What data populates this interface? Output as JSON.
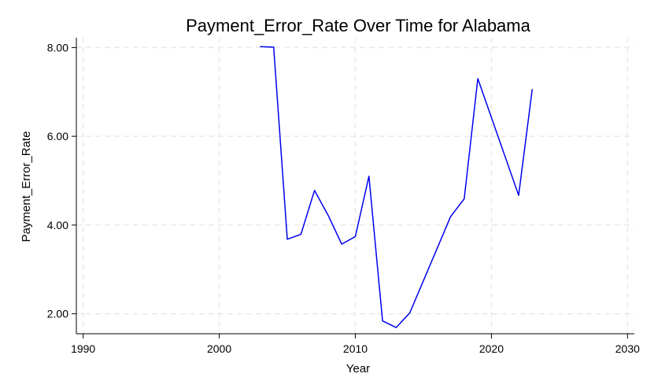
{
  "chart_data": {
    "type": "line",
    "title": "Payment_Error_Rate Over Time for Alabama",
    "xlabel": "Year",
    "ylabel": "Payment_Error_Rate",
    "xlim": [
      1989.5,
      2030.5
    ],
    "ylim": [
      1.55,
      8.22
    ],
    "x_ticks": [
      1990,
      2000,
      2010,
      2020,
      2030
    ],
    "x_tick_labels": [
      "1990",
      "2000",
      "2010",
      "2020",
      "2030"
    ],
    "y_ticks": [
      2,
      4,
      6,
      8
    ],
    "y_tick_labels": [
      "2.00",
      "4.00",
      "6.00",
      "8.00"
    ],
    "grid": true,
    "series": [
      {
        "color": "#0000ee",
        "x": [
          2003,
          2004,
          2005,
          2006,
          2007,
          2008,
          2009,
          2010,
          2011,
          2012,
          2013,
          2014,
          2017,
          2018,
          2019,
          2022,
          2023
        ],
        "y": [
          8.02,
          8.01,
          3.68,
          3.79,
          4.78,
          4.22,
          3.57,
          3.74,
          5.1,
          1.84,
          1.69,
          2.02,
          4.19,
          4.59,
          7.3,
          4.67,
          7.06
        ]
      }
    ]
  }
}
